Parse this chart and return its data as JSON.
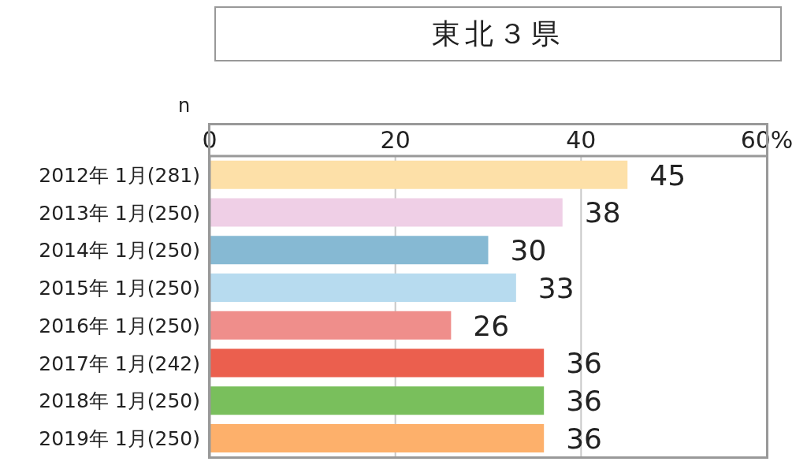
{
  "chart_data": {
    "type": "bar",
    "orientation": "horizontal",
    "title": "東北３県",
    "categories": [
      "2012年 1月(281)",
      "2013年 1月(250)",
      "2014年 1月(250)",
      "2015年 1月(250)",
      "2016年 1月(250)",
      "2017年 1月(242)",
      "2018年 1月(250)",
      "2019年 1月(250)"
    ],
    "values": [
      45,
      38,
      30,
      33,
      26,
      36,
      36,
      36
    ],
    "colors": [
      "#fde0a8",
      "#efcfe6",
      "#86b9d3",
      "#b7dbef",
      "#ef8e8b",
      "#eb5f4e",
      "#79bf5c",
      "#fdb06b"
    ],
    "xlim": [
      0,
      60
    ],
    "xticks": [
      0,
      20,
      40,
      {
        "value": 60,
        "label": "60%"
      }
    ],
    "grid": "x",
    "data_labels": true,
    "annotations": [
      "n"
    ]
  }
}
